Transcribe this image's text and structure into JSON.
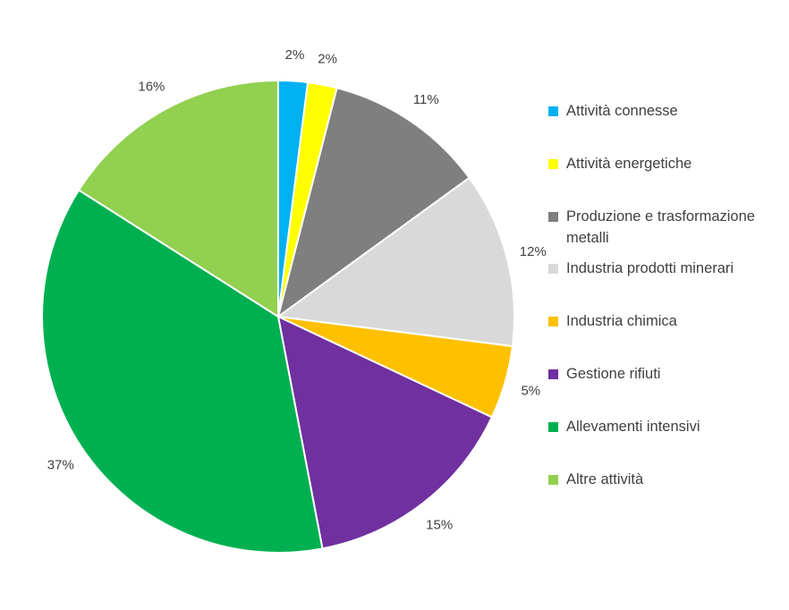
{
  "page": {
    "background_color": "#ffffff",
    "text_color": "#404040"
  },
  "chart_data": {
    "type": "pie",
    "title": "",
    "start_angle_deg": 0,
    "direction": "clockwise",
    "legend_position": "right",
    "categories": [
      "Attività connesse",
      "Attività energetiche",
      "Produzione e trasformazione metalli",
      "Industria prodotti minerari",
      "Industria chimica",
      "Gestione rifiuti",
      "Allevamenti intensivi",
      "Altre attività"
    ],
    "values": [
      2,
      2,
      11,
      12,
      5,
      15,
      37,
      16
    ],
    "labels": [
      "2%",
      "2%",
      "11%",
      "12%",
      "5%",
      "15%",
      "37%",
      "16%"
    ],
    "colors": [
      "#00b0f0",
      "#ffff00",
      "#7f7f7f",
      "#d9d9d9",
      "#ffc000",
      "#7030a0",
      "#00b050",
      "#92d050"
    ],
    "slice_border_color": "#ffffff"
  }
}
